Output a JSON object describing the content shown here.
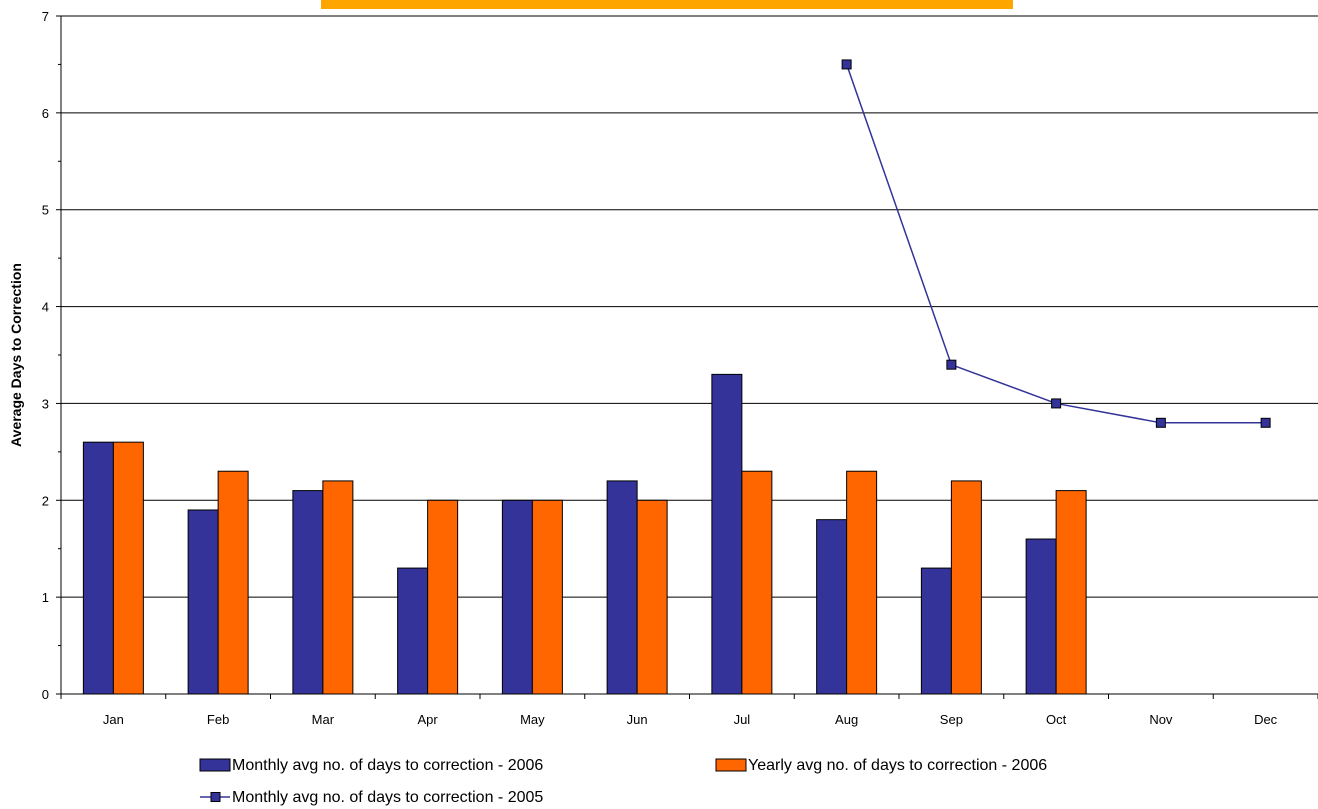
{
  "colors": {
    "series_monthly_2006": "#333399",
    "series_yearly_2006": "#ff6600",
    "series_monthly_2005": "#333399",
    "title_banner": "#ffa500",
    "gridline": "#000000"
  },
  "chart_data": {
    "type": "bar",
    "title": "",
    "xlabel": "",
    "ylabel": "Average Days to Correction",
    "ylim": [
      0,
      7
    ],
    "yticks": [
      0,
      1,
      2,
      3,
      4,
      5,
      6,
      7
    ],
    "grid": true,
    "legend_position": "bottom",
    "categories": [
      "Jan",
      "Feb",
      "Mar",
      "Apr",
      "May",
      "Jun",
      "Jul",
      "Aug",
      "Sep",
      "Oct",
      "Nov",
      "Dec"
    ],
    "series": [
      {
        "name": "Monthly avg no. of days to correction - 2006",
        "type": "bar",
        "values": [
          2.6,
          1.9,
          2.1,
          1.3,
          2.0,
          2.2,
          3.3,
          1.8,
          1.3,
          1.6,
          null,
          null
        ]
      },
      {
        "name": "Yearly avg no. of days to correction - 2006",
        "type": "bar",
        "values": [
          2.6,
          2.3,
          2.2,
          2.0,
          2.0,
          2.0,
          2.3,
          2.3,
          2.2,
          2.1,
          null,
          null
        ]
      },
      {
        "name": "Monthly avg no. of days to correction - 2005",
        "type": "line",
        "marker": "square",
        "values": [
          null,
          null,
          null,
          null,
          null,
          null,
          null,
          6.5,
          3.4,
          3.0,
          2.8,
          2.8
        ]
      }
    ]
  }
}
